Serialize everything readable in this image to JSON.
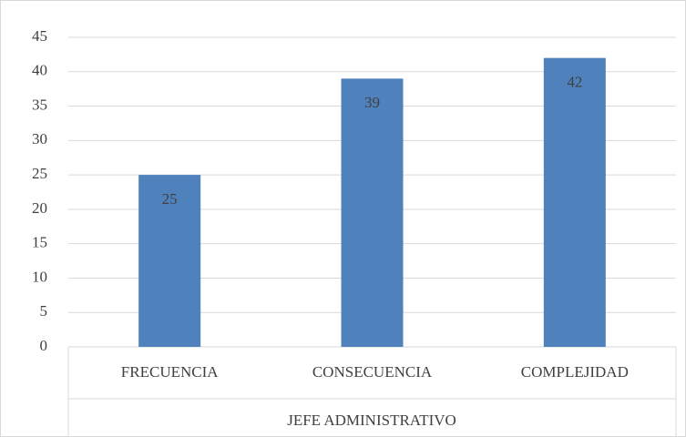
{
  "chart_data": {
    "type": "bar",
    "categories": [
      "FRECUENCIA",
      "CONSECUENCIA",
      "COMPLEJIDAD"
    ],
    "values": [
      25,
      39,
      42
    ],
    "color": "#4f81bd",
    "xlabel": "JEFE ADMINISTRATIVO",
    "ylim": [
      0,
      45
    ],
    "yticks": [
      0,
      5,
      10,
      15,
      20,
      25,
      30,
      35,
      40,
      45
    ],
    "grid": true,
    "data_labels": true
  }
}
